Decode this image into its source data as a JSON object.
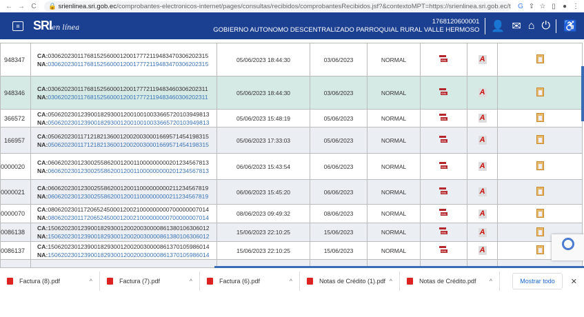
{
  "browser": {
    "url_domain": "srienlinea.sri.gob.ec",
    "url_path": "/comprobantes-electronicos-internet/pages/consultas/recibidos/comprobantesRecibidos.jsf?&contextoMPT=https://srienlinea.sri.gob.ec/tupor..."
  },
  "header": {
    "logo": "SRI",
    "logo_sub": "en línea",
    "ruc": "1768120600001",
    "entity": "GOBIERNO AUTONOMO DESCENTRALIZADO PARROQUIAL RURAL VALLE HERMOSO"
  },
  "rows": [
    {
      "num": "948347",
      "ca": "0306202301176815256000120017772119483470306202315",
      "na": "0306202301176815256000120017772119483470306202315",
      "auth_date": "05/06/2023 18:44:30",
      "emission": "03/06/2023",
      "type": "NORMAL"
    },
    {
      "num": "948346",
      "ca": "0306202301176815256000120017772119483460306202311",
      "na": "0306202301176815256000120017772119483460306202311",
      "auth_date": "05/06/2023 18:44:30",
      "emission": "03/06/2023",
      "type": "NORMAL"
    },
    {
      "num": "366572",
      "ca": "0506202301239001829300120010010033665720103949813",
      "na": "0506202301239001829300120010010033665720103949813",
      "auth_date": "05/06/2023 15:48:19",
      "emission": "05/06/2023",
      "type": "NORMAL"
    },
    {
      "num": "166957",
      "ca": "0506202301171218213600120020030001669571454198315",
      "na": "0506202301171218213600120020030001669571454198315",
      "auth_date": "05/06/2023 17:33:03",
      "emission": "05/06/2023",
      "type": "NORMAL"
    },
    {
      "num": "0000020",
      "ca": "0606202301230025586200120011000000000201234567813",
      "na": "0606202301230025586200120011000000000201234567813",
      "auth_date": "06/06/2023 15:43:54",
      "emission": "06/06/2023",
      "type": "NORMAL"
    },
    {
      "num": "0000021",
      "ca": "0606202301230025586200120011000000000211234567819",
      "na": "0606202301230025586200120011000000000211234567819",
      "auth_date": "06/06/2023 15:45:20",
      "emission": "06/06/2023",
      "type": "NORMAL"
    },
    {
      "num": "0000070",
      "ca": "0806202301172065245000120021000000000700000007014",
      "na": "0806202301172065245000120021000000000700000007014",
      "auth_date": "08/06/2023 09:49:32",
      "emission": "08/06/2023",
      "type": "NORMAL"
    },
    {
      "num": "0086138",
      "ca": "1506202301239001829300120020030000861380106306012",
      "na": "1506202301239001829300120020030000861380106306012",
      "auth_date": "15/06/2023 22:10:25",
      "emission": "15/06/2023",
      "type": "NORMAL"
    },
    {
      "num": "0086137",
      "ca": "1506202301239001829300120020030000861370105986014",
      "na": "1506202301239001829300120020030000861370105986014",
      "auth_date": "15/06/2023 22:10:25",
      "emission": "15/06/2023",
      "type": "NORMAL"
    }
  ],
  "labels": {
    "ca": "CA:",
    "na": "NA:"
  },
  "downloads": {
    "items": [
      "Factura (8).pdf",
      "Factura (7).pdf",
      "Factura (6).pdf",
      "Notas de Crédito (1).pdf",
      "Notas de Crédito.pdf"
    ],
    "show_all": "Mostrar todo"
  },
  "colors": {
    "header": "#1b3f91",
    "link": "#3a73b5",
    "selected_row": "#d6eae5"
  }
}
